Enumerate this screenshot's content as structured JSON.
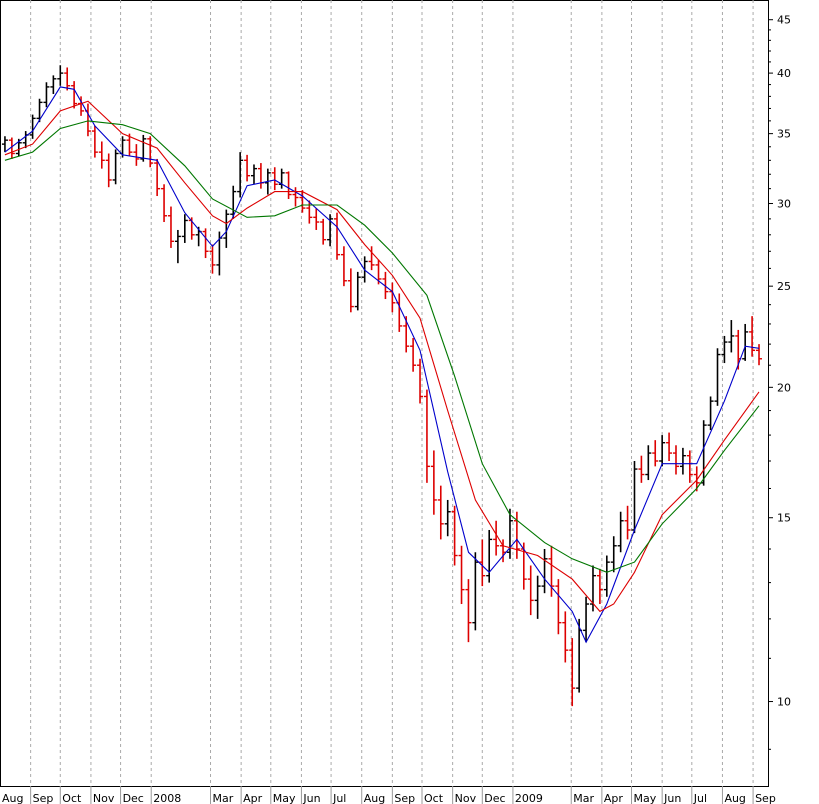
{
  "chart_data": {
    "type": "line",
    "subtype": "candlestick-with-moving-averages",
    "title": "",
    "xlabel": "",
    "ylabel": "",
    "y_scale": "log",
    "ylim": [
      8.3,
      47
    ],
    "y_ticks": [
      10,
      15,
      20,
      25,
      30,
      35,
      40,
      45
    ],
    "x_range": [
      "2007-08-01",
      "2009-09-08"
    ],
    "x_tick_labels": [
      {
        "label": "Aug",
        "date": "2007-08-01"
      },
      {
        "label": "Sep",
        "date": "2007-09-01"
      },
      {
        "label": "Oct",
        "date": "2007-10-01"
      },
      {
        "label": "Nov",
        "date": "2007-11-01"
      },
      {
        "label": "Dec",
        "date": "2007-12-01"
      },
      {
        "label": "2008",
        "date": "2008-01-01"
      },
      {
        "label": "Mar",
        "date": "2008-03-01"
      },
      {
        "label": "Apr",
        "date": "2008-04-01"
      },
      {
        "label": "May",
        "date": "2008-05-01"
      },
      {
        "label": "Jun",
        "date": "2008-06-01"
      },
      {
        "label": "Jul",
        "date": "2008-07-01"
      },
      {
        "label": "Aug",
        "date": "2008-08-01"
      },
      {
        "label": "Sep",
        "date": "2008-09-01"
      },
      {
        "label": "Oct",
        "date": "2008-10-01"
      },
      {
        "label": "Nov",
        "date": "2008-11-01"
      },
      {
        "label": "Dec",
        "date": "2008-12-01"
      },
      {
        "label": "2009",
        "date": "2009-01-01"
      },
      {
        "label": "Mar",
        "date": "2009-03-01"
      },
      {
        "label": "Apr",
        "date": "2009-04-01"
      },
      {
        "label": "May",
        "date": "2009-05-01"
      },
      {
        "label": "Jun",
        "date": "2009-06-01"
      },
      {
        "label": "Jul",
        "date": "2009-07-01"
      },
      {
        "label": "Aug",
        "date": "2009-08-01"
      },
      {
        "label": "Sep",
        "date": "2009-09-01"
      }
    ],
    "grid": {
      "vertical": true,
      "horizontal": false,
      "style": "dashed"
    },
    "colors": {
      "up_bar": "#000000",
      "down_bar": "#dd0000",
      "ma_blue": "#0000cc",
      "ma_red": "#dd0000",
      "ma_green": "#007700"
    },
    "ohlc_weekly": [
      [
        "2007-08-06",
        34.2,
        34.8,
        33.6,
        34.5
      ],
      [
        "2007-08-13",
        34.5,
        34.7,
        33.1,
        33.5
      ],
      [
        "2007-08-20",
        33.5,
        34.6,
        33.3,
        34.3
      ],
      [
        "2007-08-27",
        34.3,
        35.2,
        33.9,
        34.9
      ],
      [
        "2007-09-03",
        34.9,
        36.5,
        34.6,
        36.2
      ],
      [
        "2007-09-10",
        36.2,
        37.8,
        35.9,
        37.5
      ],
      [
        "2007-09-17",
        37.5,
        39.2,
        37.1,
        38.8
      ],
      [
        "2007-09-24",
        38.8,
        39.8,
        38.2,
        39.5
      ],
      [
        "2007-10-01",
        39.5,
        40.7,
        38.9,
        40.0
      ],
      [
        "2007-10-08",
        40.0,
        40.5,
        38.5,
        38.9
      ],
      [
        "2007-10-15",
        38.9,
        39.3,
        37.0,
        37.4
      ],
      [
        "2007-10-22",
        37.4,
        38.0,
        36.4,
        36.8
      ],
      [
        "2007-10-29",
        36.8,
        37.4,
        34.8,
        35.2
      ],
      [
        "2007-11-05",
        35.2,
        35.6,
        33.2,
        33.6
      ],
      [
        "2007-11-12",
        33.6,
        34.4,
        32.4,
        33.0
      ],
      [
        "2007-11-19",
        33.0,
        33.5,
        31.1,
        31.6
      ],
      [
        "2007-11-26",
        31.6,
        33.8,
        31.3,
        33.5
      ],
      [
        "2007-12-03",
        33.5,
        34.8,
        33.2,
        34.5
      ],
      [
        "2007-12-10",
        34.5,
        35.0,
        33.3,
        33.6
      ],
      [
        "2007-12-17",
        33.6,
        34.2,
        32.6,
        33.1
      ],
      [
        "2007-12-24",
        33.1,
        34.9,
        32.9,
        34.6
      ],
      [
        "2007-12-31",
        34.6,
        34.8,
        32.5,
        32.8
      ],
      [
        "2008-01-07",
        32.8,
        33.1,
        30.5,
        31.0
      ],
      [
        "2008-01-14",
        31.0,
        31.3,
        28.8,
        29.2
      ],
      [
        "2008-01-21",
        29.2,
        29.8,
        27.2,
        27.6
      ],
      [
        "2008-01-28",
        27.6,
        28.3,
        26.3,
        27.9
      ],
      [
        "2008-02-04",
        27.9,
        29.3,
        27.5,
        28.9
      ],
      [
        "2008-02-11",
        28.9,
        29.1,
        27.7,
        28.0
      ],
      [
        "2008-02-18",
        28.0,
        28.5,
        27.3,
        28.2
      ],
      [
        "2008-02-25",
        28.2,
        28.4,
        26.6,
        27.0
      ],
      [
        "2008-03-03",
        27.0,
        27.4,
        25.7,
        26.2
      ],
      [
        "2008-03-10",
        26.2,
        28.2,
        25.6,
        27.8
      ],
      [
        "2008-03-17",
        27.8,
        29.6,
        27.2,
        29.3
      ],
      [
        "2008-03-24",
        29.3,
        31.2,
        29.0,
        30.8
      ],
      [
        "2008-03-31",
        30.8,
        33.6,
        30.4,
        33.0
      ],
      [
        "2008-04-07",
        33.0,
        33.4,
        31.5,
        31.9
      ],
      [
        "2008-04-14",
        31.9,
        32.7,
        31.3,
        32.4
      ],
      [
        "2008-04-21",
        32.4,
        32.8,
        31.0,
        31.4
      ],
      [
        "2008-04-28",
        31.4,
        32.4,
        30.6,
        32.1
      ],
      [
        "2008-05-05",
        32.1,
        32.5,
        30.9,
        31.3
      ],
      [
        "2008-05-12",
        31.3,
        32.4,
        31.0,
        32.1
      ],
      [
        "2008-05-19",
        32.1,
        32.2,
        30.3,
        30.6
      ],
      [
        "2008-05-26",
        30.6,
        31.1,
        29.8,
        30.4
      ],
      [
        "2008-06-02",
        30.4,
        30.9,
        29.4,
        29.7
      ],
      [
        "2008-06-09",
        29.7,
        30.2,
        28.7,
        29.1
      ],
      [
        "2008-06-16",
        29.1,
        29.7,
        28.3,
        28.8
      ],
      [
        "2008-06-23",
        28.8,
        29.0,
        27.4,
        27.7
      ],
      [
        "2008-06-30",
        27.7,
        29.3,
        27.3,
        29.0
      ],
      [
        "2008-07-07",
        29.0,
        29.4,
        26.5,
        26.8
      ],
      [
        "2008-07-14",
        26.8,
        27.3,
        25.0,
        25.3
      ],
      [
        "2008-07-21",
        25.3,
        26.0,
        23.6,
        23.9
      ],
      [
        "2008-07-28",
        23.9,
        25.8,
        23.7,
        25.5
      ],
      [
        "2008-08-04",
        25.5,
        26.7,
        25.2,
        26.4
      ],
      [
        "2008-08-11",
        26.4,
        27.3,
        25.9,
        26.2
      ],
      [
        "2008-08-18",
        26.2,
        26.5,
        25.1,
        25.4
      ],
      [
        "2008-08-25",
        25.4,
        25.8,
        24.3,
        24.7
      ],
      [
        "2008-09-01",
        24.7,
        25.2,
        23.6,
        24.1
      ],
      [
        "2008-09-08",
        24.1,
        24.6,
        22.6,
        22.9
      ],
      [
        "2008-09-15",
        22.9,
        23.4,
        21.6,
        21.9
      ],
      [
        "2008-09-22",
        21.9,
        22.3,
        20.7,
        21.0
      ],
      [
        "2008-09-29",
        21.0,
        21.3,
        19.3,
        19.6
      ],
      [
        "2008-10-06",
        19.6,
        19.9,
        16.2,
        16.8
      ],
      [
        "2008-10-13",
        16.8,
        17.4,
        15.1,
        15.6
      ],
      [
        "2008-10-20",
        15.6,
        16.1,
        14.3,
        14.8
      ],
      [
        "2008-10-27",
        14.8,
        15.6,
        14.4,
        15.2
      ],
      [
        "2008-11-03",
        15.2,
        15.4,
        13.5,
        13.8
      ],
      [
        "2008-11-10",
        13.8,
        14.1,
        12.4,
        12.8
      ],
      [
        "2008-11-17",
        12.8,
        13.1,
        11.4,
        11.9
      ],
      [
        "2008-11-24",
        11.9,
        13.9,
        11.7,
        13.6
      ],
      [
        "2008-12-01",
        13.6,
        14.3,
        12.9,
        13.2
      ],
      [
        "2008-12-08",
        13.2,
        14.6,
        13.0,
        14.3
      ],
      [
        "2008-12-15",
        14.3,
        14.9,
        13.8,
        14.1
      ],
      [
        "2008-12-22",
        14.1,
        14.3,
        13.6,
        13.9
      ],
      [
        "2008-12-29",
        13.9,
        15.3,
        13.7,
        14.9
      ],
      [
        "2009-01-05",
        14.9,
        15.2,
        13.7,
        14.0
      ],
      [
        "2009-01-12",
        14.0,
        14.2,
        12.8,
        13.1
      ],
      [
        "2009-01-19",
        13.1,
        13.5,
        12.1,
        12.5
      ],
      [
        "2009-01-26",
        12.5,
        13.2,
        12.0,
        12.9
      ],
      [
        "2009-02-02",
        12.9,
        14.0,
        12.7,
        13.7
      ],
      [
        "2009-02-09",
        13.7,
        14.1,
        12.6,
        12.9
      ],
      [
        "2009-02-16",
        12.9,
        13.1,
        11.6,
        11.9
      ],
      [
        "2009-02-23",
        11.9,
        12.2,
        10.9,
        11.2
      ],
      [
        "2009-03-02",
        11.2,
        11.5,
        9.9,
        10.3
      ],
      [
        "2009-03-09",
        10.3,
        12.0,
        10.2,
        11.7
      ],
      [
        "2009-03-16",
        11.7,
        12.6,
        11.4,
        12.4
      ],
      [
        "2009-03-23",
        12.4,
        13.5,
        12.2,
        13.2
      ],
      [
        "2009-03-30",
        13.2,
        13.4,
        12.4,
        12.8
      ],
      [
        "2009-04-06",
        12.8,
        13.8,
        12.6,
        13.6
      ],
      [
        "2009-04-13",
        13.6,
        14.4,
        13.3,
        14.1
      ],
      [
        "2009-04-20",
        14.1,
        15.2,
        13.9,
        14.9
      ],
      [
        "2009-04-27",
        14.9,
        15.4,
        14.3,
        14.6
      ],
      [
        "2009-05-04",
        14.6,
        17.0,
        14.5,
        16.7
      ],
      [
        "2009-05-11",
        16.7,
        17.2,
        16.2,
        16.5
      ],
      [
        "2009-05-18",
        16.5,
        17.6,
        16.3,
        17.3
      ],
      [
        "2009-05-25",
        17.3,
        17.8,
        16.8,
        17.0
      ],
      [
        "2009-06-01",
        17.0,
        18.0,
        16.8,
        17.7
      ],
      [
        "2009-06-08",
        17.7,
        18.1,
        17.0,
        17.3
      ],
      [
        "2009-06-15",
        17.3,
        17.6,
        16.5,
        16.8
      ],
      [
        "2009-06-22",
        16.8,
        17.5,
        16.5,
        17.2
      ],
      [
        "2009-06-29",
        17.2,
        17.4,
        16.2,
        16.5
      ],
      [
        "2009-07-06",
        16.5,
        16.8,
        15.9,
        16.2
      ],
      [
        "2009-07-13",
        16.2,
        18.6,
        16.1,
        18.4
      ],
      [
        "2009-07-20",
        18.4,
        19.6,
        18.2,
        19.4
      ],
      [
        "2009-07-27",
        19.4,
        21.8,
        19.2,
        21.5
      ],
      [
        "2009-08-03",
        21.5,
        22.4,
        21.1,
        22.1
      ],
      [
        "2009-08-10",
        22.1,
        23.2,
        21.6,
        22.4
      ],
      [
        "2009-08-17",
        22.4,
        22.7,
        20.8,
        21.3
      ],
      [
        "2009-08-24",
        21.3,
        23.0,
        21.2,
        22.6
      ],
      [
        "2009-08-31",
        22.6,
        23.4,
        21.4,
        21.7
      ],
      [
        "2009-09-07",
        21.7,
        22.0,
        21.0,
        21.3
      ]
    ],
    "moving_averages": [
      {
        "name": "",
        "color": "#0000cc",
        "values": [
          [
            "2007-08-06",
            33.6
          ],
          [
            "2007-09-03",
            35.2
          ],
          [
            "2007-10-01",
            38.8
          ],
          [
            "2007-10-15",
            38.6
          ],
          [
            "2007-11-05",
            35.6
          ],
          [
            "2007-12-03",
            33.4
          ],
          [
            "2008-01-07",
            33.0
          ],
          [
            "2008-02-04",
            29.4
          ],
          [
            "2008-03-03",
            27.3
          ],
          [
            "2008-03-17",
            28.2
          ],
          [
            "2008-04-07",
            31.2
          ],
          [
            "2008-05-05",
            31.6
          ],
          [
            "2008-06-02",
            30.5
          ],
          [
            "2008-07-07",
            28.5
          ],
          [
            "2008-08-04",
            25.9
          ],
          [
            "2008-09-01",
            24.7
          ],
          [
            "2008-09-29",
            21.7
          ],
          [
            "2008-10-27",
            16.6
          ],
          [
            "2008-11-17",
            13.9
          ],
          [
            "2008-12-08",
            13.3
          ],
          [
            "2009-01-05",
            14.3
          ],
          [
            "2009-02-02",
            13.1
          ],
          [
            "2009-03-02",
            12.2
          ],
          [
            "2009-03-16",
            11.4
          ],
          [
            "2009-04-06",
            12.4
          ],
          [
            "2009-05-04",
            14.6
          ],
          [
            "2009-06-01",
            16.9
          ],
          [
            "2009-07-06",
            16.9
          ],
          [
            "2009-08-03",
            19.4
          ],
          [
            "2009-08-24",
            21.9
          ],
          [
            "2009-09-07",
            21.8
          ]
        ]
      },
      {
        "name": "",
        "color": "#dd0000",
        "values": [
          [
            "2007-08-06",
            33.4
          ],
          [
            "2007-09-03",
            34.2
          ],
          [
            "2007-10-01",
            36.8
          ],
          [
            "2007-10-29",
            37.6
          ],
          [
            "2007-12-03",
            35.0
          ],
          [
            "2008-01-07",
            33.9
          ],
          [
            "2008-02-04",
            31.4
          ],
          [
            "2008-03-03",
            29.2
          ],
          [
            "2008-03-17",
            28.7
          ],
          [
            "2008-04-07",
            29.7
          ],
          [
            "2008-05-05",
            30.8
          ],
          [
            "2008-06-02",
            30.8
          ],
          [
            "2008-07-07",
            29.6
          ],
          [
            "2008-08-04",
            27.4
          ],
          [
            "2008-09-01",
            25.6
          ],
          [
            "2008-09-29",
            23.3
          ],
          [
            "2008-10-27",
            19.0
          ],
          [
            "2008-11-24",
            15.6
          ],
          [
            "2008-12-22",
            14.1
          ],
          [
            "2009-01-26",
            13.8
          ],
          [
            "2009-03-02",
            13.1
          ],
          [
            "2009-03-30",
            12.2
          ],
          [
            "2009-04-13",
            12.4
          ],
          [
            "2009-05-04",
            13.3
          ],
          [
            "2009-06-01",
            15.1
          ],
          [
            "2009-07-06",
            16.3
          ],
          [
            "2009-08-03",
            17.8
          ],
          [
            "2009-09-07",
            19.8
          ]
        ]
      },
      {
        "name": "",
        "color": "#007700",
        "values": [
          [
            "2007-08-06",
            33.0
          ],
          [
            "2007-09-03",
            33.6
          ],
          [
            "2007-10-01",
            35.4
          ],
          [
            "2007-10-29",
            36.0
          ],
          [
            "2007-12-03",
            35.7
          ],
          [
            "2007-12-31",
            35.0
          ],
          [
            "2008-02-04",
            32.6
          ],
          [
            "2008-03-03",
            30.3
          ],
          [
            "2008-04-07",
            29.1
          ],
          [
            "2008-05-05",
            29.2
          ],
          [
            "2008-06-02",
            29.9
          ],
          [
            "2008-07-07",
            29.9
          ],
          [
            "2008-08-04",
            28.6
          ],
          [
            "2008-09-01",
            26.9
          ],
          [
            "2008-10-06",
            24.5
          ],
          [
            "2008-11-03",
            20.5
          ],
          [
            "2008-12-01",
            16.9
          ],
          [
            "2008-12-29",
            15.1
          ],
          [
            "2009-02-02",
            14.2
          ],
          [
            "2009-03-02",
            13.7
          ],
          [
            "2009-04-06",
            13.3
          ],
          [
            "2009-05-04",
            13.6
          ],
          [
            "2009-06-01",
            14.8
          ],
          [
            "2009-07-06",
            16.0
          ],
          [
            "2009-08-03",
            17.4
          ],
          [
            "2009-09-07",
            19.2
          ]
        ]
      }
    ]
  }
}
